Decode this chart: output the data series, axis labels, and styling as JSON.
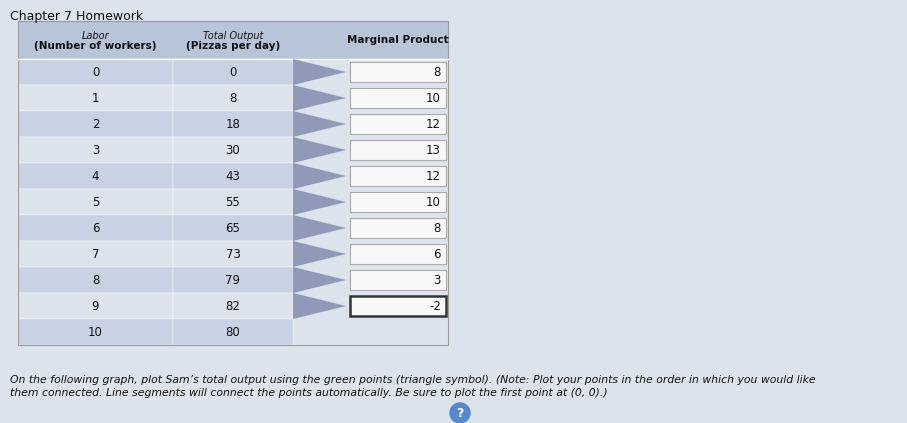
{
  "title": "Chapter 7 Homework",
  "workers": [
    0,
    1,
    2,
    3,
    4,
    5,
    6,
    7,
    8,
    9,
    10
  ],
  "total_output": [
    0,
    8,
    18,
    30,
    43,
    55,
    65,
    73,
    79,
    82,
    80
  ],
  "marginal_product": [
    8,
    10,
    12,
    13,
    12,
    10,
    8,
    6,
    3,
    -2
  ],
  "bg_color_page": "#dde3ec",
  "bg_color_header": "#b8c5d8",
  "bg_color_row_even": "#c8d2e2",
  "bg_color_row_odd": "#dde3ec",
  "bg_color_table": "#f0f2f6",
  "text_color": "#111111",
  "arrow_color": "#9099b8",
  "mp_box_bg": "#f8f8f8",
  "mp_box_border_normal": "#aaaaaa",
  "mp_box_border_last": "#333333",
  "note_text": "On the following graph, plot Sam’s total output using the green points (triangle symbol). (Note: Plot your points in the order in which you would like\nthem connected. Line segments will connect the points automatically. Be sure to plot the first point at (0, 0).)"
}
